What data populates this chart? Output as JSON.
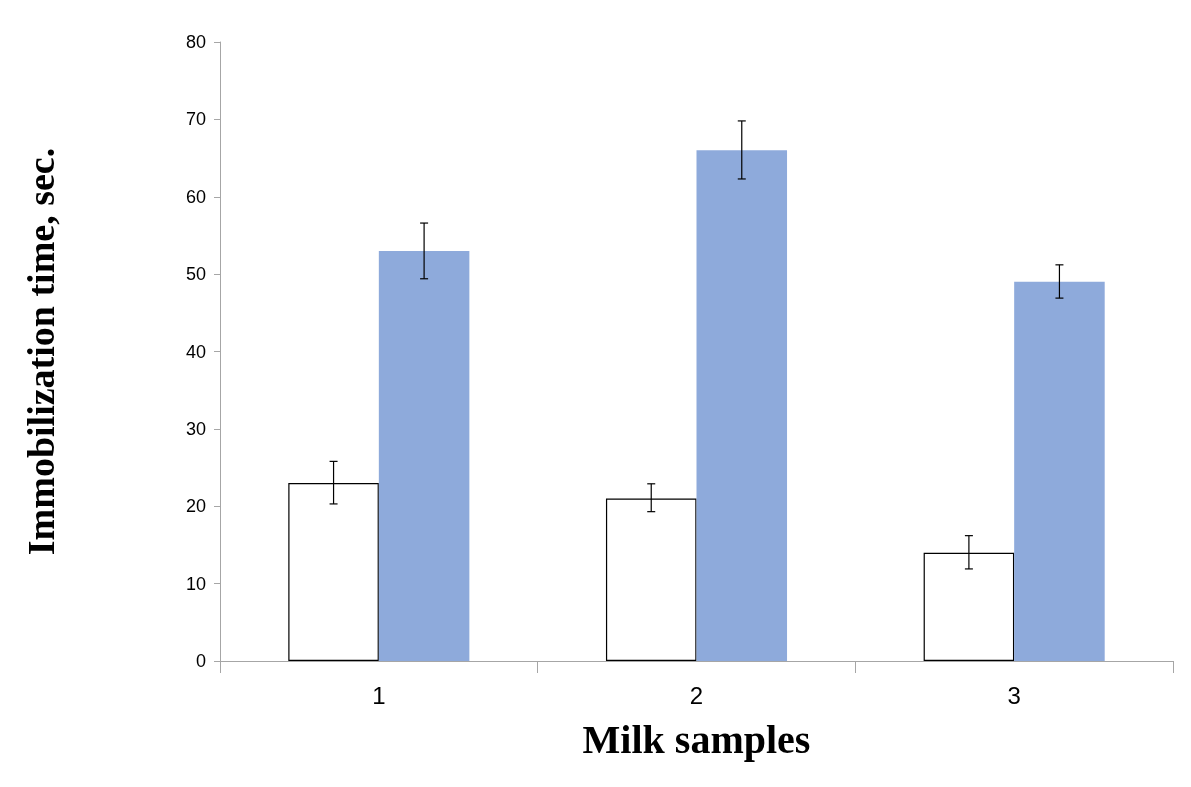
{
  "chart_data": {
    "type": "bar",
    "xlabel": "Milk samples",
    "ylabel": "Immobilization time, sec.",
    "categories": [
      "1",
      "2",
      "3"
    ],
    "series": [
      {
        "color": "#ffffff",
        "values": [
          23,
          21,
          14
        ],
        "errors": [
          [
            20.3,
            25.8
          ],
          [
            19.3,
            22.9
          ],
          [
            11.9,
            16.2
          ]
        ]
      },
      {
        "color": "#8eaadb",
        "values": [
          53,
          66,
          49
        ],
        "errors": [
          [
            49.4,
            56.6
          ],
          [
            62.3,
            69.8
          ],
          [
            46.9,
            51.2
          ]
        ]
      }
    ],
    "ylim": [
      0,
      80
    ],
    "yticks": [
      0,
      10,
      20,
      30,
      40,
      50,
      60,
      70,
      80
    ]
  }
}
